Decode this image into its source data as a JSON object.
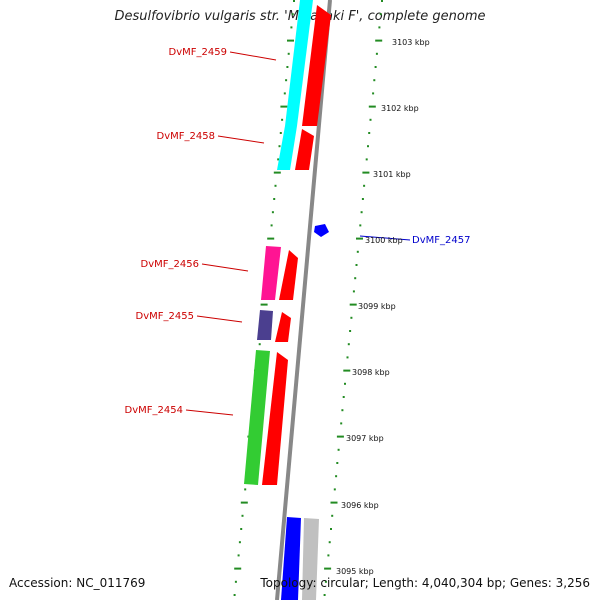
{
  "title": "Desulfovibrio vulgaris str. 'Miyazaki F', complete genome",
  "footer": {
    "accession": "Accession: NC_011769",
    "summary": "Topology: circular; Length: 4,040,304 bp; Genes: 3,256"
  },
  "kbp_labels": [
    "3103 kbp",
    "3102 kbp",
    "3101 kbp",
    "3100 kbp",
    "3099 kbp",
    "3098 kbp",
    "3097 kbp",
    "3096 kbp",
    "3095 kbp"
  ],
  "genes": [
    {
      "name": "DvMF_2459",
      "color": "#cc0000"
    },
    {
      "name": "DvMF_2458",
      "color": "#cc0000"
    },
    {
      "name": "DvMF_2457",
      "color": "#0000cc"
    },
    {
      "name": "DvMF_2456",
      "color": "#cc0000"
    },
    {
      "name": "DvMF_2455",
      "color": "#cc0000"
    },
    {
      "name": "DvMF_2454",
      "color": "#cc0000"
    }
  ],
  "colors": {
    "cyan": "#00ffff",
    "red": "#ff0000",
    "blue": "#0000ff",
    "magenta": "#ff1493",
    "purple": "#4b3f8f",
    "green": "#33cc33",
    "gray": "#c0c0c0",
    "ticks": "#228b22",
    "backbone": "#888888"
  }
}
